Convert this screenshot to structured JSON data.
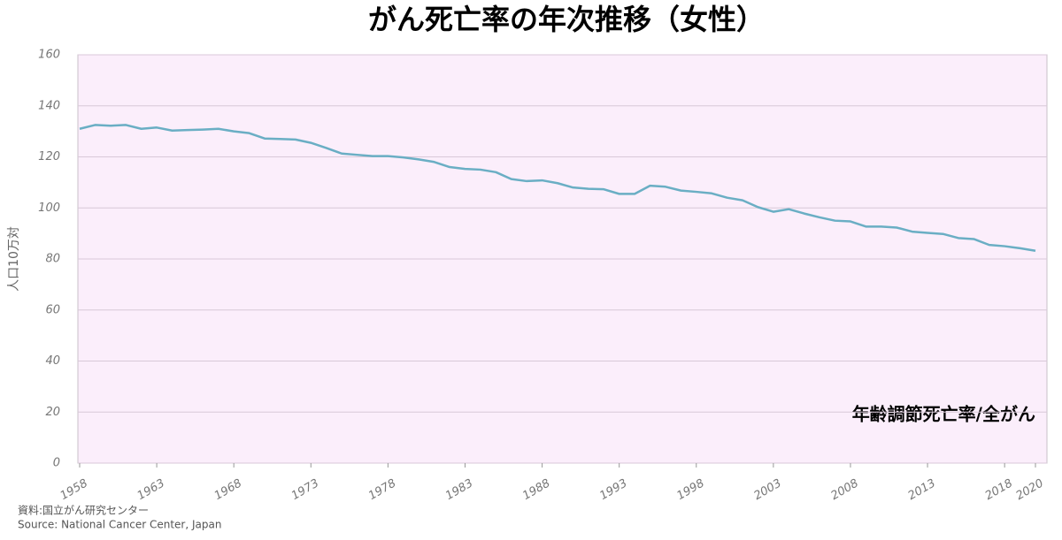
{
  "chart_data": {
    "type": "line",
    "title": "がん死亡率の年次推移（女性）",
    "y_label": "人口10万対",
    "annotation": "年齢調節死亡率/全がん",
    "source": [
      "資料:国立がん研究センター",
      "Source: National Cancer Center, Japan"
    ],
    "x": [
      1958,
      1959,
      1960,
      1961,
      1962,
      1963,
      1964,
      1965,
      1966,
      1967,
      1968,
      1969,
      1970,
      1971,
      1972,
      1973,
      1974,
      1975,
      1976,
      1977,
      1978,
      1979,
      1980,
      1981,
      1982,
      1983,
      1984,
      1985,
      1986,
      1987,
      1988,
      1989,
      1990,
      1991,
      1992,
      1993,
      1994,
      1995,
      1996,
      1997,
      1998,
      1999,
      2000,
      2001,
      2002,
      2003,
      2004,
      2005,
      2006,
      2007,
      2008,
      2009,
      2010,
      2011,
      2012,
      2013,
      2014,
      2015,
      2016,
      2017,
      2018,
      2019,
      2020
    ],
    "series": [
      {
        "color": "#6aaec4",
        "values": [
          131,
          132.5,
          132.2,
          132.5,
          131,
          131.5,
          130.3,
          130.5,
          130.7,
          131,
          130,
          129.3,
          127.2,
          127,
          126.8,
          125.5,
          123.5,
          121.3,
          120.8,
          120.3,
          120.3,
          119.8,
          119,
          118,
          116,
          115.3,
          115,
          114,
          111.3,
          110.5,
          110.8,
          109.7,
          108,
          107.5,
          107.3,
          105.5,
          105.5,
          108.7,
          108.3,
          106.8,
          106.3,
          105.7,
          104,
          103,
          100.3,
          98.5,
          99.5,
          97.8,
          96.3,
          95,
          94.7,
          92.7,
          92.7,
          92.3,
          90.7,
          90.2,
          89.8,
          88.2,
          87.8,
          85.5,
          85,
          84.2,
          83.2
        ]
      }
    ],
    "xlim": [
      1958,
      2020
    ],
    "xticks": [
      1958,
      1963,
      1968,
      1973,
      1978,
      1983,
      1988,
      1993,
      1998,
      2003,
      2008,
      2013,
      2018,
      2020
    ],
    "ylim": [
      0,
      160
    ],
    "yticks": [
      0,
      20,
      40,
      60,
      80,
      100,
      120,
      140,
      160
    ],
    "grid": true
  }
}
